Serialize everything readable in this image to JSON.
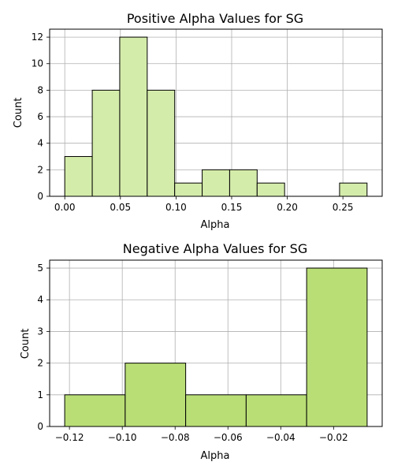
{
  "chart_data": [
    {
      "type": "bar",
      "title": "Positive Alpha Values for SG",
      "xlabel": "Alpha",
      "ylabel": "Count",
      "bin_edges": [
        0.0,
        0.0247,
        0.0494,
        0.0741,
        0.0988,
        0.1235,
        0.1482,
        0.1729,
        0.1976,
        0.2223,
        0.247,
        0.2717
      ],
      "values": [
        3,
        8,
        12,
        8,
        1,
        2,
        2,
        1,
        0,
        0,
        1
      ],
      "xlim": [
        -0.0136,
        0.2853
      ],
      "ylim": [
        0,
        12.6
      ],
      "xticks": [
        0.0,
        0.05,
        0.1,
        0.15,
        0.2,
        0.25
      ],
      "xtick_labels": [
        "0.00",
        "0.05",
        "0.10",
        "0.15",
        "0.20",
        "0.25"
      ],
      "yticks": [
        0,
        2,
        4,
        6,
        8,
        10,
        12
      ],
      "ytick_labels": [
        "0",
        "2",
        "4",
        "6",
        "8",
        "10",
        "12"
      ],
      "grid": true,
      "colors": {
        "bar": "#d4ecaa",
        "edge": "#000000",
        "grid": "#b0b0b0"
      }
    },
    {
      "type": "bar",
      "title": "Negative Alpha Values for SG",
      "xlabel": "Alpha",
      "ylabel": "Count",
      "bin_edges": [
        -0.1218,
        -0.0989,
        -0.076,
        -0.0531,
        -0.0302,
        -0.0073
      ],
      "values": [
        1,
        2,
        1,
        1,
        5
      ],
      "xlim": [
        -0.1275,
        -0.0016
      ],
      "ylim": [
        0,
        5.25
      ],
      "xticks": [
        -0.12,
        -0.1,
        -0.08,
        -0.06,
        -0.04,
        -0.02
      ],
      "xtick_labels": [
        "−0.12",
        "−0.10",
        "−0.08",
        "−0.06",
        "−0.04",
        "−0.02"
      ],
      "yticks": [
        0,
        1,
        2,
        3,
        4,
        5
      ],
      "ytick_labels": [
        "0",
        "1",
        "2",
        "3",
        "4",
        "5"
      ],
      "grid": true,
      "colors": {
        "bar": "#b9de76",
        "edge": "#000000",
        "grid": "#b0b0b0"
      }
    }
  ]
}
